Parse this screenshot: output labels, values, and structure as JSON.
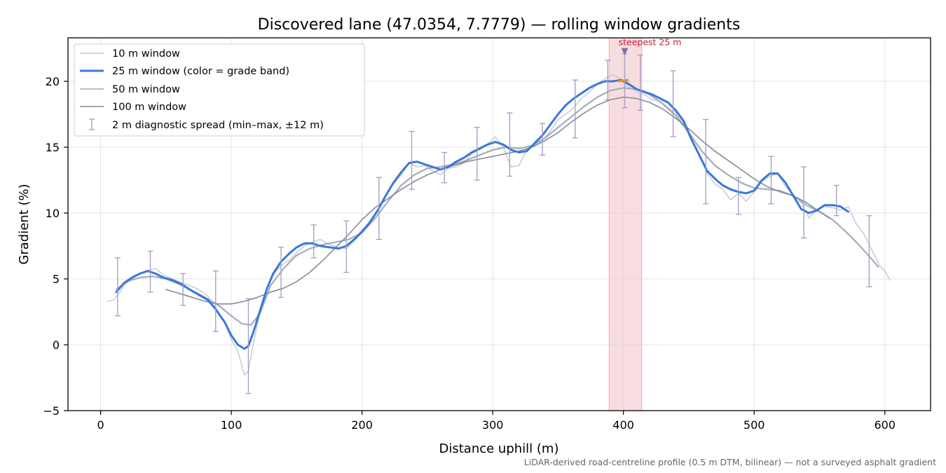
{
  "chart_data": {
    "type": "line",
    "title": "Discovered lane (47.0354, 7.7779) — rolling window gradients",
    "xlabel": "Distance uphill (m)",
    "ylabel": "Gradient (%)",
    "xlim": [
      -25,
      635
    ],
    "ylim": [
      -5,
      23.3
    ],
    "xticks": [
      0,
      100,
      200,
      300,
      400,
      500,
      600
    ],
    "yticks": [
      -5,
      0,
      5,
      10,
      15,
      20
    ],
    "grid": true,
    "legend_position": "top-left",
    "footnote": "LiDAR-derived road-centreline profile (0.5 m DTM, bilinear) — not a surveyed asphalt gradient",
    "highlight": {
      "x_from": 389,
      "x_to": 414,
      "label": "steepest 25 m",
      "marker_x": 401,
      "marker_y": 22.2,
      "color": "#f4c7cc"
    },
    "series": [
      {
        "name": "10 m window",
        "color": "#c3c8d2",
        "x": [
          5,
          10,
          14,
          18,
          24,
          30,
          36,
          42,
          48,
          55,
          62,
          68,
          75,
          82,
          88,
          95,
          100,
          105,
          110,
          113,
          117,
          122,
          127,
          132,
          138,
          144,
          150,
          156,
          162,
          168,
          175,
          182,
          188,
          194,
          200,
          206,
          212,
          218,
          224,
          230,
          236,
          242,
          248,
          254,
          260,
          266,
          272,
          278,
          284,
          290,
          296,
          302,
          308,
          314,
          320,
          326,
          332,
          338,
          344,
          350,
          356,
          362,
          368,
          374,
          380,
          386,
          392,
          398,
          404,
          410,
          416,
          422,
          428,
          434,
          440,
          446,
          452,
          458,
          464,
          470,
          476,
          482,
          488,
          494,
          500,
          506,
          512,
          518,
          524,
          530,
          536,
          542,
          548,
          554,
          560,
          566,
          572,
          578,
          584,
          590,
          596,
          600,
          604
        ],
        "y": [
          3.3,
          3.4,
          3.9,
          4.5,
          5.0,
          5.4,
          5.6,
          5.8,
          5.3,
          5.0,
          4.7,
          4.5,
          4.2,
          3.7,
          2.8,
          1.7,
          0.4,
          -0.5,
          -2.3,
          -2.0,
          0.2,
          2.5,
          4.2,
          5.3,
          6.0,
          6.4,
          7.0,
          7.5,
          7.8,
          8.0,
          7.6,
          7.4,
          7.3,
          7.9,
          8.5,
          9.3,
          10.2,
          11.3,
          12.2,
          12.9,
          13.8,
          13.5,
          13.6,
          13.2,
          12.9,
          13.4,
          13.5,
          13.8,
          14.5,
          14.8,
          15.2,
          15.8,
          15.0,
          13.5,
          13.6,
          14.8,
          15.2,
          15.5,
          16.2,
          17.1,
          17.5,
          18.0,
          18.7,
          19.2,
          19.8,
          20.2,
          20.5,
          20.2,
          19.6,
          19.2,
          19.0,
          18.6,
          18.5,
          18.0,
          17.6,
          16.8,
          15.5,
          14.5,
          13.0,
          12.2,
          11.8,
          11.0,
          11.5,
          10.9,
          11.6,
          12.4,
          12.8,
          13.0,
          12.0,
          11.4,
          10.8,
          9.6,
          10.3,
          10.5,
          10.4,
          10.2,
          10.5,
          9.2,
          8.4,
          7.2,
          6.0,
          5.6,
          4.9
        ]
      },
      {
        "name": "25 m window (color = grade band)",
        "color": "#3a78d8",
        "x": [
          12,
          18,
          24,
          30,
          36,
          42,
          48,
          55,
          62,
          68,
          75,
          82,
          88,
          95,
          100,
          105,
          110,
          113,
          117,
          122,
          127,
          132,
          138,
          144,
          150,
          156,
          162,
          168,
          175,
          182,
          188,
          194,
          200,
          206,
          212,
          218,
          224,
          230,
          236,
          242,
          248,
          254,
          260,
          266,
          272,
          278,
          284,
          290,
          296,
          302,
          308,
          314,
          320,
          326,
          332,
          338,
          344,
          350,
          356,
          362,
          368,
          374,
          380,
          386,
          392,
          398,
          404,
          410,
          416,
          422,
          428,
          434,
          440,
          446,
          452,
          458,
          464,
          470,
          476,
          482,
          488,
          494,
          500,
          506,
          512,
          518,
          524,
          530,
          536,
          542,
          548,
          554,
          560,
          566,
          572
        ],
        "y": [
          4.0,
          4.7,
          5.1,
          5.4,
          5.6,
          5.4,
          5.1,
          4.9,
          4.6,
          4.2,
          3.8,
          3.4,
          2.7,
          1.7,
          0.7,
          0.0,
          -0.3,
          -0.1,
          1.0,
          2.6,
          4.2,
          5.4,
          6.3,
          6.9,
          7.4,
          7.7,
          7.7,
          7.5,
          7.4,
          7.3,
          7.5,
          8.0,
          8.6,
          9.3,
          10.2,
          11.3,
          12.3,
          13.1,
          13.8,
          13.9,
          13.7,
          13.5,
          13.3,
          13.5,
          13.9,
          14.2,
          14.6,
          14.9,
          15.2,
          15.4,
          15.2,
          14.8,
          14.6,
          14.7,
          15.3,
          15.9,
          16.7,
          17.5,
          18.2,
          18.7,
          19.1,
          19.5,
          19.8,
          20.0,
          20.0,
          20.1,
          19.8,
          19.4,
          19.2,
          19.0,
          18.7,
          18.4,
          17.8,
          17.0,
          15.6,
          14.4,
          13.2,
          12.6,
          12.1,
          11.8,
          11.6,
          11.5,
          11.7,
          12.5,
          13.0,
          13.0,
          12.3,
          11.3,
          10.3,
          10.0,
          10.2,
          10.6,
          10.6,
          10.5,
          10.1
        ]
      },
      {
        "name": "50 m window",
        "color": "#a4acbc",
        "x": [
          12,
          20,
          30,
          40,
          50,
          60,
          70,
          80,
          90,
          100,
          108,
          115,
          122,
          130,
          140,
          150,
          160,
          170,
          180,
          190,
          200,
          210,
          220,
          230,
          240,
          250,
          260,
          270,
          280,
          290,
          300,
          310,
          320,
          330,
          340,
          350,
          360,
          370,
          380,
          390,
          400,
          410,
          420,
          430,
          440,
          450,
          460,
          470,
          480,
          490,
          500,
          510,
          520,
          530,
          540,
          550,
          560,
          570,
          580,
          590,
          595
        ],
        "y": [
          4.2,
          4.8,
          5.1,
          5.2,
          5.0,
          4.6,
          4.1,
          3.6,
          3.0,
          2.2,
          1.6,
          1.5,
          2.4,
          4.5,
          5.8,
          6.8,
          7.3,
          7.6,
          7.8,
          8.0,
          8.5,
          9.6,
          10.9,
          12.1,
          12.9,
          13.4,
          13.5,
          13.7,
          14.0,
          14.4,
          14.8,
          15.0,
          14.9,
          15.1,
          15.7,
          16.5,
          17.3,
          18.1,
          18.8,
          19.3,
          19.5,
          19.4,
          19.0,
          18.3,
          17.4,
          16.1,
          14.7,
          13.6,
          12.9,
          12.3,
          11.9,
          11.8,
          11.7,
          11.3,
          10.6,
          10.1,
          9.5,
          8.6,
          7.6,
          6.5,
          5.9
        ]
      },
      {
        "name": "100 m window",
        "color": "#868b9a",
        "x": [
          50,
          60,
          70,
          80,
          90,
          100,
          110,
          120,
          130,
          140,
          150,
          160,
          170,
          180,
          190,
          200,
          210,
          220,
          230,
          240,
          250,
          260,
          270,
          280,
          290,
          300,
          310,
          320,
          330,
          340,
          350,
          360,
          370,
          380,
          390,
          400,
          410,
          420,
          430,
          440,
          450,
          460,
          470,
          480,
          490,
          500,
          510,
          520,
          530,
          540,
          550,
          558
        ],
        "y": [
          4.2,
          3.9,
          3.6,
          3.3,
          3.1,
          3.1,
          3.3,
          3.6,
          4.0,
          4.3,
          4.8,
          5.5,
          6.4,
          7.4,
          8.4,
          9.5,
          10.4,
          11.1,
          11.8,
          12.4,
          12.9,
          13.3,
          13.6,
          13.9,
          14.1,
          14.3,
          14.5,
          14.7,
          15.0,
          15.5,
          16.1,
          16.9,
          17.6,
          18.2,
          18.6,
          18.8,
          18.7,
          18.4,
          17.9,
          17.2,
          16.4,
          15.5,
          14.7,
          14.0,
          13.3,
          12.6,
          12.0,
          11.6,
          11.3,
          10.8,
          10.1,
          9.6
        ]
      }
    ],
    "diagnostic": {
      "name": "2 m diagnostic spread (min–max, ±12 m)",
      "color": "#a39ac4",
      "x": [
        13,
        38,
        63,
        88,
        113,
        138,
        163,
        188,
        213,
        238,
        263,
        288,
        313,
        338,
        363,
        388,
        401,
        413,
        438,
        463,
        488,
        513,
        538,
        563,
        588
      ],
      "min": [
        2.2,
        4.0,
        3.0,
        1.0,
        -3.7,
        3.6,
        6.6,
        5.5,
        8.0,
        11.8,
        12.3,
        12.5,
        12.8,
        14.4,
        15.7,
        18.6,
        18.0,
        17.8,
        15.8,
        10.7,
        9.9,
        10.7,
        8.1,
        9.8,
        4.4
      ],
      "max": [
        6.6,
        7.1,
        5.4,
        5.6,
        3.5,
        7.4,
        9.1,
        9.4,
        12.7,
        16.2,
        14.6,
        16.5,
        17.6,
        16.8,
        20.1,
        21.6,
        22.1,
        22.0,
        20.8,
        17.1,
        12.7,
        14.3,
        13.5,
        12.1,
        9.8
      ]
    }
  }
}
